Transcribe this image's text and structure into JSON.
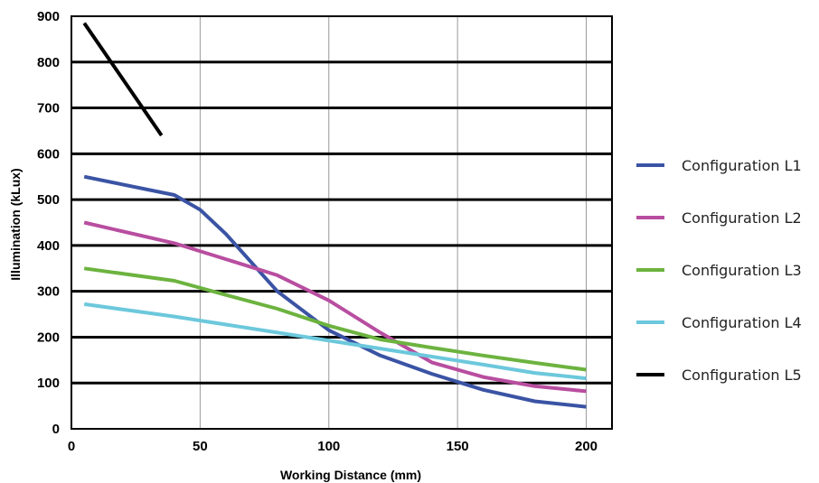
{
  "chart_data": {
    "type": "line",
    "title": "",
    "xlabel": "Working Distance (mm)",
    "ylabel": "Illumination (kLux)",
    "xlim": [
      0,
      210
    ],
    "ylim": [
      0,
      900
    ],
    "x_ticks": [
      0,
      50,
      100,
      150,
      200
    ],
    "y_ticks": [
      0,
      100,
      200,
      300,
      400,
      500,
      600,
      700,
      800,
      900
    ],
    "x_tick_labels": [
      "0",
      "50",
      "100",
      "150",
      "200"
    ],
    "y_tick_labels": [
      "0",
      "100",
      "200",
      "300",
      "400",
      "500",
      "600",
      "700",
      "800",
      "900"
    ],
    "grid": {
      "horizontal": true,
      "vertical": true
    },
    "legend_position": "right",
    "series": [
      {
        "name": "Configuration L1",
        "color": "#3a53a4",
        "x": [
          5,
          20,
          40,
          50,
          60,
          80,
          100,
          120,
          140,
          160,
          180,
          200
        ],
        "y": [
          550,
          533,
          510,
          478,
          425,
          300,
          215,
          160,
          120,
          85,
          60,
          48
        ]
      },
      {
        "name": "Configuration L2",
        "color": "#b84ea0",
        "x": [
          5,
          40,
          60,
          80,
          100,
          120,
          140,
          160,
          180,
          200
        ],
        "y": [
          450,
          405,
          370,
          335,
          280,
          210,
          145,
          113,
          93,
          82
        ]
      },
      {
        "name": "Configuration L3",
        "color": "#6cb33f",
        "x": [
          5,
          40,
          60,
          80,
          100,
          120,
          140,
          160,
          180,
          200
        ],
        "y": [
          350,
          323,
          292,
          262,
          225,
          195,
          177,
          160,
          144,
          129
        ]
      },
      {
        "name": "Configuration L4",
        "color": "#6cc8dc",
        "x": [
          5,
          40,
          80,
          120,
          160,
          180,
          200
        ],
        "y": [
          272,
          245,
          210,
          175,
          140,
          122,
          110
        ]
      },
      {
        "name": "Configuration L5",
        "color": "#000000",
        "x": [
          5,
          35
        ],
        "y": [
          885,
          640
        ]
      }
    ]
  }
}
